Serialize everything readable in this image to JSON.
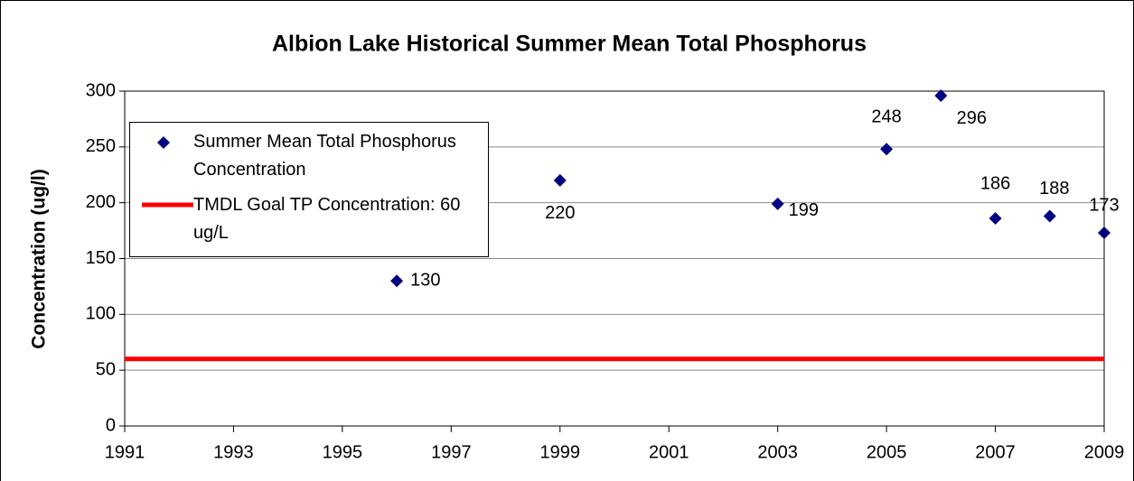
{
  "chart_data": {
    "type": "scatter",
    "title": "Albion Lake Historical Summer Mean Total Phosphorus",
    "y_label": "Concentration (ug/l)",
    "series": [
      {
        "name": "Summer Mean Total Phosphorus Concentration",
        "color": "#000080",
        "x": [
          1996,
          1999,
          2003,
          2005,
          2006,
          2007,
          2008,
          2009
        ],
        "values": [
          130,
          220,
          199,
          248,
          296,
          186,
          188,
          173
        ]
      }
    ],
    "reference_lines": [
      {
        "name": "TMDL Goal TP Concentration: 60 ug/L",
        "value": 60,
        "color": "#ff0000"
      }
    ],
    "xlim": [
      1991,
      2009
    ],
    "xticks": [
      1991,
      1993,
      1995,
      1997,
      1999,
      2001,
      2003,
      2005,
      2007,
      2009
    ],
    "ylim": [
      0,
      300
    ],
    "yticks": [
      0,
      50,
      100,
      150,
      200,
      250,
      300
    ],
    "grid": true,
    "legend": "upper left"
  }
}
